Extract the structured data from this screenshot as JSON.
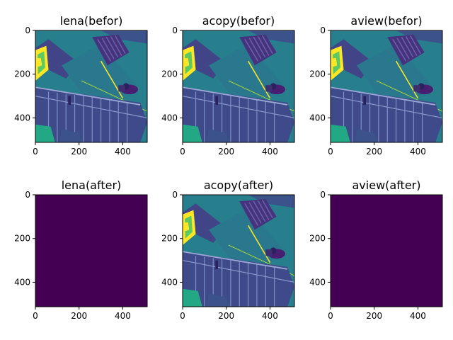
{
  "chart_data": [
    {
      "type": "heatmap",
      "title": "lena(befor)",
      "image": "staircase-photo",
      "xlim": [
        0,
        512
      ],
      "ylim": [
        512,
        0
      ],
      "x_ticks": [
        0,
        200,
        400
      ],
      "y_ticks": [
        0,
        200,
        400
      ],
      "colormap": "viridis"
    },
    {
      "type": "heatmap",
      "title": "acopy(befor)",
      "image": "staircase-photo",
      "xlim": [
        0,
        512
      ],
      "ylim": [
        512,
        0
      ],
      "x_ticks": [
        0,
        200,
        400
      ],
      "y_ticks": [
        0,
        200,
        400
      ],
      "colormap": "viridis"
    },
    {
      "type": "heatmap",
      "title": "aview(befor)",
      "image": "staircase-photo",
      "xlim": [
        0,
        512
      ],
      "ylim": [
        512,
        0
      ],
      "x_ticks": [
        0,
        200,
        400
      ],
      "y_ticks": [
        0,
        200,
        400
      ],
      "colormap": "viridis"
    },
    {
      "type": "heatmap",
      "title": "lena(after)",
      "image": "uniform-zero",
      "xlim": [
        0,
        512
      ],
      "ylim": [
        512,
        0
      ],
      "x_ticks": [
        0,
        200,
        400
      ],
      "y_ticks": [
        0,
        200,
        400
      ],
      "colormap": "viridis"
    },
    {
      "type": "heatmap",
      "title": "acopy(after)",
      "image": "staircase-photo",
      "xlim": [
        0,
        512
      ],
      "ylim": [
        512,
        0
      ],
      "x_ticks": [
        0,
        200,
        400
      ],
      "y_ticks": [
        0,
        200,
        400
      ],
      "colormap": "viridis"
    },
    {
      "type": "heatmap",
      "title": "aview(after)",
      "image": "uniform-zero",
      "xlim": [
        0,
        512
      ],
      "ylim": [
        512,
        0
      ],
      "x_ticks": [
        0,
        200,
        400
      ],
      "y_ticks": [
        0,
        200,
        400
      ],
      "colormap": "viridis"
    }
  ],
  "colors": {
    "viridis_dark": "#440154",
    "viridis_purple": "#46337e",
    "viridis_blue": "#365c8d",
    "viridis_teal": "#277f8e",
    "viridis_green": "#1fa187",
    "viridis_lightgreen": "#4ac16d",
    "viridis_yellowgreen": "#a0da39",
    "viridis_yellow": "#fde725"
  }
}
